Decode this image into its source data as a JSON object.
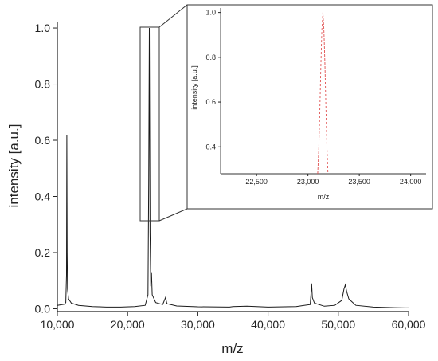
{
  "chart_data": [
    {
      "id": "main",
      "type": "line",
      "xlabel": "m/z",
      "ylabel": "intensity [a.u.]",
      "xlim": [
        10000,
        60000
      ],
      "ylim": [
        -0.01,
        1.02
      ],
      "x_ticks": [
        10000,
        20000,
        30000,
        40000,
        50000,
        60000
      ],
      "x_tick_labels": [
        "10,000",
        "20,000",
        "30,000",
        "40,000",
        "50,000",
        "60,000"
      ],
      "y_ticks": [
        0.0,
        0.2,
        0.4,
        0.6,
        0.8,
        1.0
      ],
      "y_tick_labels": [
        "0.0",
        "0.2",
        "0.4",
        "0.6",
        "0.8",
        "1.0"
      ],
      "grid": false,
      "series": [
        {
          "color": "#1a1a1a",
          "points": [
            [
              10000,
              0.012
            ],
            [
              10500,
              0.014
            ],
            [
              11000,
              0.016
            ],
            [
              11200,
              0.022
            ],
            [
              11300,
              0.12
            ],
            [
              11350,
              0.62
            ],
            [
              11400,
              0.2
            ],
            [
              11450,
              0.07
            ],
            [
              11600,
              0.035
            ],
            [
              12000,
              0.02
            ],
            [
              13000,
              0.012
            ],
            [
              15000,
              0.008
            ],
            [
              17000,
              0.006
            ],
            [
              19000,
              0.006
            ],
            [
              21000,
              0.008
            ],
            [
              22500,
              0.012
            ],
            [
              22900,
              0.05
            ],
            [
              23000,
              0.45
            ],
            [
              23100,
              1.0
            ],
            [
              23200,
              0.27
            ],
            [
              23300,
              0.08
            ],
            [
              23400,
              0.13
            ],
            [
              23500,
              0.05
            ],
            [
              24000,
              0.022
            ],
            [
              25000,
              0.015
            ],
            [
              25400,
              0.04
            ],
            [
              25600,
              0.018
            ],
            [
              27000,
              0.01
            ],
            [
              30000,
              0.007
            ],
            [
              34500,
              0.006
            ],
            [
              35000,
              0.008
            ],
            [
              37000,
              0.009
            ],
            [
              40000,
              0.006
            ],
            [
              44000,
              0.008
            ],
            [
              46000,
              0.015
            ],
            [
              46100,
              0.05
            ],
            [
              46200,
              0.09
            ],
            [
              46300,
              0.04
            ],
            [
              46600,
              0.02
            ],
            [
              48000,
              0.009
            ],
            [
              49500,
              0.012
            ],
            [
              50500,
              0.03
            ],
            [
              50800,
              0.07
            ],
            [
              51000,
              0.085
            ],
            [
              51200,
              0.06
            ],
            [
              51500,
              0.035
            ],
            [
              52500,
              0.012
            ],
            [
              55000,
              0.006
            ],
            [
              58000,
              0.004
            ],
            [
              60000,
              0.003
            ]
          ]
        }
      ]
    },
    {
      "id": "inset",
      "type": "line",
      "xlabel": "m/z",
      "ylabel": "intensity [a.u.]",
      "xlim": [
        22150,
        24150
      ],
      "ylim": [
        0.28,
        1.02
      ],
      "x_ticks": [
        22500,
        23000,
        23500,
        24000
      ],
      "x_tick_labels": [
        "22,500",
        "23,000",
        "23,500",
        "24,000"
      ],
      "y_ticks": [
        0.4,
        0.6,
        0.8,
        1.0
      ],
      "y_tick_labels": [
        "0.4",
        "0.6",
        "0.8",
        "1.0"
      ],
      "grid": false,
      "series": [
        {
          "color": "#e05050",
          "dashed": true,
          "points": [
            [
              23095,
              0.28
            ],
            [
              23105,
              0.38
            ],
            [
              23115,
              0.55
            ],
            [
              23125,
              0.75
            ],
            [
              23135,
              0.92
            ],
            [
              23145,
              1.0
            ],
            [
              23155,
              0.93
            ],
            [
              23165,
              0.78
            ],
            [
              23175,
              0.58
            ],
            [
              23185,
              0.4
            ],
            [
              23195,
              0.28
            ]
          ]
        }
      ]
    }
  ]
}
